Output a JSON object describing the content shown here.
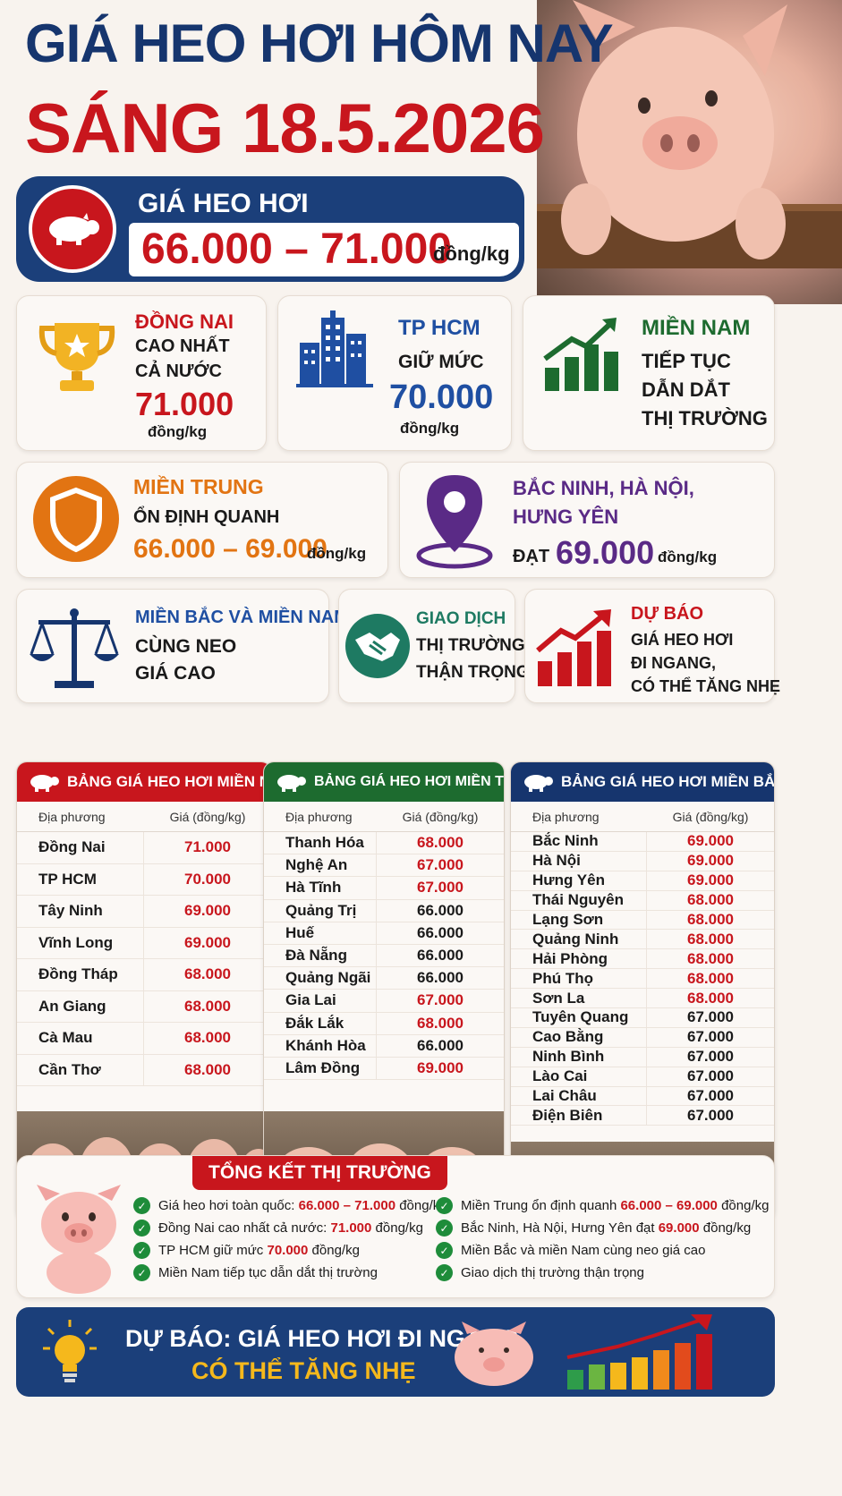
{
  "header": {
    "title_line1": "GIÁ HEO HƠI HÔM NAY",
    "title_line2": "SÁNG 18.5.2026"
  },
  "price_banner": {
    "label": "GIÁ HEO HƠI",
    "range": "66.000 – 71.000",
    "unit": "đồng/kg"
  },
  "cards": {
    "dong_nai": {
      "title": "ĐỒNG NAI",
      "line1": "CAO NHẤT",
      "line2": "CẢ NƯỚC",
      "price": "71.000",
      "unit": "đồng/kg",
      "icon": "trophy-icon"
    },
    "tphcm": {
      "title": "TP HCM",
      "line1": "GIỮ MỨC",
      "price": "70.000",
      "unit": "đồng/kg",
      "icon": "city-icon"
    },
    "mien_nam": {
      "title": "MIỀN NAM",
      "line1": "TIẾP TỤC",
      "line2": "DẪN DẮT",
      "line3": "THỊ TRƯỜNG",
      "icon": "growth-chart-icon"
    },
    "mien_trung": {
      "title": "MIỀN TRUNG",
      "line1": "ỔN ĐỊNH QUANH",
      "price": "66.000 – 69.000",
      "unit": "đồng/kg",
      "icon": "shield-icon"
    },
    "bac_ninh": {
      "title_line1": "BẮC NINH, HÀ NỘI,",
      "title_line2": "HƯNG YÊN",
      "prefix": "ĐẠT",
      "price": "69.000",
      "unit": "đồng/kg",
      "icon": "location-pin-icon"
    },
    "bac_nam": {
      "title": "MIỀN BẮC VÀ MIỀN NAM",
      "line1": "CÙNG NEO",
      "line2": "GIÁ CAO",
      "icon": "scale-icon"
    },
    "giao_dich": {
      "title": "GIAO DỊCH",
      "line1": "THỊ TRƯỜNG",
      "line2": "THẬN TRỌNG",
      "icon": "handshake-icon"
    },
    "du_bao": {
      "title": "DỰ BÁO",
      "line1": "GIÁ HEO HƠI",
      "line2": "ĐI NGANG,",
      "line3": "CÓ THỂ TĂNG NHẸ",
      "icon": "rising-chart-icon"
    }
  },
  "tables": {
    "col_local": "Địa phương",
    "col_price": "Giá (đồng/kg)",
    "south": {
      "title": "BẢNG GIÁ HEO HƠI MIỀN NAM",
      "color": "#c8161d",
      "rows": [
        {
          "name": "Đồng Nai",
          "price": "71.000",
          "red": true
        },
        {
          "name": "TP HCM",
          "price": "70.000",
          "red": true
        },
        {
          "name": "Tây Ninh",
          "price": "69.000",
          "red": true
        },
        {
          "name": "Vĩnh Long",
          "price": "69.000",
          "red": true
        },
        {
          "name": "Đồng Tháp",
          "price": "68.000",
          "red": true
        },
        {
          "name": "An Giang",
          "price": "68.000",
          "red": true
        },
        {
          "name": "Cà Mau",
          "price": "68.000",
          "red": true
        },
        {
          "name": "Cần Thơ",
          "price": "68.000",
          "red": true
        }
      ]
    },
    "central": {
      "title": "BẢNG GIÁ HEO HƠI MIỀN TRUNG",
      "color": "#1d6b2f",
      "rows": [
        {
          "name": "Thanh Hóa",
          "price": "68.000",
          "red": true
        },
        {
          "name": "Nghệ An",
          "price": "67.000",
          "red": true
        },
        {
          "name": "Hà Tĩnh",
          "price": "67.000",
          "red": true
        },
        {
          "name": "Quảng Trị",
          "price": "66.000",
          "red": false
        },
        {
          "name": "Huế",
          "price": "66.000",
          "red": false
        },
        {
          "name": "Đà Nẵng",
          "price": "66.000",
          "red": false
        },
        {
          "name": "Quảng Ngãi",
          "price": "66.000",
          "red": false
        },
        {
          "name": "Gia Lai",
          "price": "67.000",
          "red": true
        },
        {
          "name": "Đắk Lắk",
          "price": "68.000",
          "red": true
        },
        {
          "name": "Khánh Hòa",
          "price": "66.000",
          "red": false
        },
        {
          "name": "Lâm Đồng",
          "price": "69.000",
          "red": true
        }
      ]
    },
    "north": {
      "title": "BẢNG GIÁ HEO HƠI MIỀN BẮC",
      "color": "#16356e",
      "rows": [
        {
          "name": "Bắc Ninh",
          "price": "69.000",
          "red": true
        },
        {
          "name": "Hà Nội",
          "price": "69.000",
          "red": true
        },
        {
          "name": "Hưng Yên",
          "price": "69.000",
          "red": true
        },
        {
          "name": "Thái Nguyên",
          "price": "68.000",
          "red": true
        },
        {
          "name": "Lạng Sơn",
          "price": "68.000",
          "red": true
        },
        {
          "name": "Quảng Ninh",
          "price": "68.000",
          "red": true
        },
        {
          "name": "Hải Phòng",
          "price": "68.000",
          "red": true
        },
        {
          "name": "Phú Thọ",
          "price": "68.000",
          "red": true
        },
        {
          "name": "Sơn La",
          "price": "68.000",
          "red": true
        },
        {
          "name": "Tuyên Quang",
          "price": "67.000",
          "red": false
        },
        {
          "name": "Cao Bằng",
          "price": "67.000",
          "red": false
        },
        {
          "name": "Ninh Bình",
          "price": "67.000",
          "red": false
        },
        {
          "name": "Lào Cai",
          "price": "67.000",
          "red": false
        },
        {
          "name": "Lai Châu",
          "price": "67.000",
          "red": false
        },
        {
          "name": "Điện Biên",
          "price": "67.000",
          "red": false
        }
      ]
    }
  },
  "summary": {
    "title": "TỔNG KẾT THỊ TRƯỜNG",
    "left": [
      {
        "pre": "Giá heo hơi toàn quốc: ",
        "hl": "66.000 – 71.000",
        "post": " đồng/kg"
      },
      {
        "pre": "Đồng Nai cao nhất cả nước: ",
        "hl": "71.000",
        "post": " đồng/kg"
      },
      {
        "pre": "TP HCM giữ mức ",
        "hl": "70.000",
        "post": " đồng/kg"
      },
      {
        "pre": "Miền Nam tiếp tục dẫn dắt thị trường",
        "hl": "",
        "post": ""
      }
    ],
    "right": [
      {
        "pre": "Miền Trung ổn định quanh ",
        "hl": "66.000 – 69.000",
        "post": " đồng/kg"
      },
      {
        "pre": "Bắc Ninh, Hà Nội, Hưng Yên đạt ",
        "hl": "69.000",
        "post": " đồng/kg"
      },
      {
        "pre": "Miền Bắc và miền Nam cùng neo giá cao",
        "hl": "",
        "post": ""
      },
      {
        "pre": "Giao dịch thị trường thận trọng",
        "hl": "",
        "post": ""
      }
    ]
  },
  "forecast": {
    "line1": "DỰ BÁO: GIÁ HEO HƠI ĐI NGANG,",
    "line2": "CÓ THỂ TĂNG NHẸ"
  }
}
